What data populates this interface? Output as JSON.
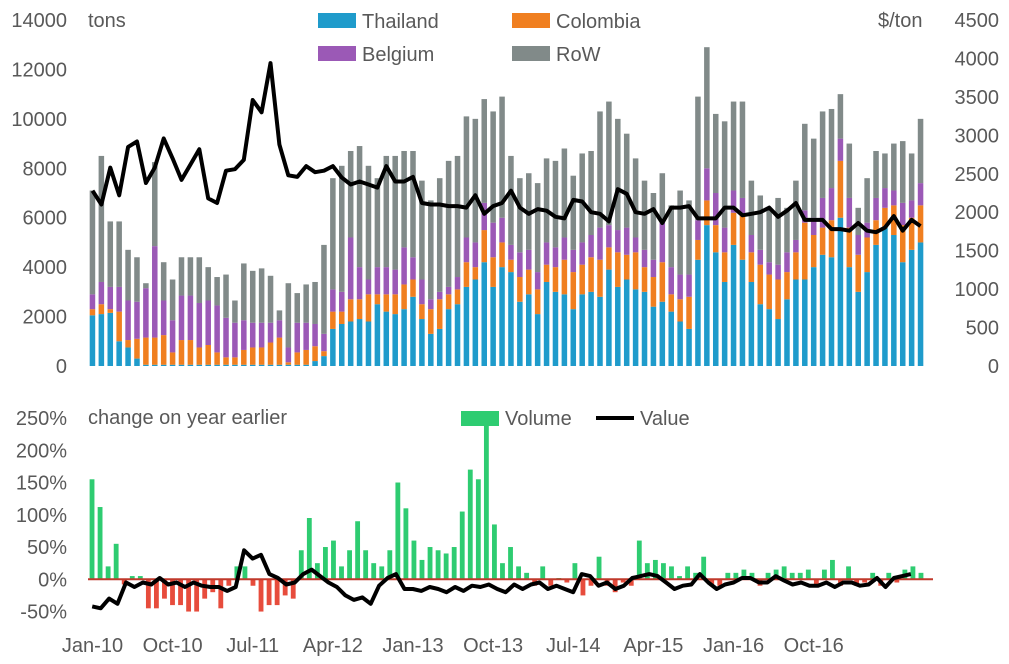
{
  "chart_data": [
    {
      "type": "bar",
      "stacked": true,
      "y_unit": "tons",
      "y2_unit": "$/ton",
      "ylim": [
        0,
        14000
      ],
      "y2lim": [
        0,
        4500
      ],
      "yticks": [
        "0",
        "2000",
        "4000",
        "6000",
        "8000",
        "10000",
        "12000",
        "14000"
      ],
      "y2ticks": [
        "0",
        "500",
        "1000",
        "1500",
        "2000",
        "2500",
        "3000",
        "3500",
        "4000",
        "4500"
      ],
      "grid": false,
      "legend": "top-center",
      "series": [
        {
          "name": "Thailand",
          "color": "#1f9bcb",
          "values": [
            2050,
            2100,
            2150,
            1000,
            750,
            300,
            50,
            50,
            50,
            50,
            50,
            50,
            50,
            50,
            50,
            50,
            50,
            50,
            50,
            50,
            50,
            50,
            50,
            50,
            50,
            200,
            400,
            1500,
            1700,
            1800,
            1900,
            1800,
            2500,
            2200,
            2100,
            2300,
            2800,
            1900,
            1300,
            1500,
            2300,
            2500,
            3200,
            3500,
            4200,
            3200,
            4000,
            3800,
            2600,
            2900,
            2100,
            3400,
            3000,
            2900,
            2300,
            2900,
            3000,
            2800,
            3900,
            3200,
            3500,
            3100,
            3000,
            2400,
            2600,
            2200,
            1800,
            1500,
            4300,
            5700,
            4600,
            3400,
            4900,
            4300,
            3400,
            2500,
            2300,
            1900,
            2700,
            3500,
            3500,
            4000,
            4500,
            4400,
            6000,
            4000,
            3000,
            3800,
            4900,
            5600,
            5300,
            4200,
            4700,
            5000
          ]
        },
        {
          "name": "Colombia",
          "color": "#f07f20",
          "values": [
            250,
            400,
            150,
            1200,
            300,
            800,
            1100,
            1100,
            1200,
            500,
            1000,
            1000,
            700,
            800,
            500,
            300,
            300,
            600,
            700,
            700,
            900,
            1100,
            100,
            500,
            600,
            600,
            200,
            700,
            500,
            900,
            800,
            1100,
            400,
            700,
            800,
            1000,
            700,
            600,
            1000,
            1200,
            600,
            600,
            1000,
            500,
            1300,
            1200,
            1000,
            500,
            1000,
            1000,
            1000,
            700,
            1000,
            1400,
            1500,
            1200,
            1400,
            1500,
            900,
            1400,
            1000,
            1500,
            1000,
            1200,
            1600,
            700,
            900,
            1300,
            800,
            1000,
            1100,
            1200,
            1300,
            1800,
            1200,
            1600,
            1400,
            1600,
            1100,
            1100,
            2300,
            1300,
            1100,
            1500,
            2300,
            1600,
            1500,
            1400,
            1000,
            800,
            1200,
            1500,
            1300,
            1500
          ]
        },
        {
          "name": "Belgium",
          "color": "#9b59b6",
          "values": [
            600,
            900,
            900,
            1000,
            1600,
            1500,
            2000,
            3700,
            1400,
            1300,
            1800,
            1800,
            1800,
            1800,
            1900,
            1600,
            1400,
            1200,
            1000,
            1000,
            800,
            700,
            600,
            1200,
            1100,
            900,
            700,
            900,
            800,
            2500,
            1300,
            600,
            1100,
            1100,
            1000,
            1500,
            900,
            1000,
            400,
            300,
            300,
            500,
            1000,
            1000,
            1100,
            1400,
            1000,
            600,
            1000,
            800,
            700,
            900,
            800,
            900,
            900,
            900,
            900,
            1300,
            900,
            900,
            1100,
            600,
            700,
            700,
            1600,
            1100,
            1000,
            900,
            800,
            1300,
            1300,
            1000,
            900,
            700,
            700,
            600,
            500,
            600,
            800,
            500,
            500,
            700,
            1200,
            1300,
            900,
            1200,
            800,
            600,
            900,
            800,
            600,
            900,
            700,
            900
          ]
        },
        {
          "name": "RoW",
          "color": "#818a89",
          "values": [
            4200,
            5100,
            2650,
            2650,
            2050,
            1800,
            200,
            3400,
            1550,
            1650,
            1550,
            1550,
            1850,
            1350,
            1150,
            1750,
            900,
            2300,
            2100,
            2200,
            1900,
            400,
            2600,
            1200,
            1550,
            1700,
            3600,
            4500,
            5100,
            3500,
            4900,
            4600,
            3600,
            4500,
            4600,
            3900,
            4300,
            4000,
            4000,
            4600,
            5100,
            4900,
            4900,
            5000,
            4200,
            4500,
            4900,
            3600,
            3000,
            3100,
            3600,
            3400,
            3500,
            3600,
            3000,
            3600,
            3400,
            4700,
            5000,
            4500,
            3800,
            3200,
            2800,
            2700,
            2000,
            2500,
            3400,
            3000,
            5000,
            4900,
            3200,
            4300,
            3600,
            3900,
            2200,
            2200,
            2200,
            2700,
            1800,
            2400,
            3500,
            3200,
            3500,
            3200,
            1800,
            2200,
            1100,
            1800,
            1900,
            1400,
            1900,
            2500,
            1900,
            2600
          ]
        },
        {
          "name": "Value",
          "color": "#000000",
          "axis": "right",
          "type": "line",
          "values": [
            2280,
            2100,
            2580,
            2220,
            2850,
            2920,
            2380,
            2580,
            2960,
            2700,
            2420,
            2620,
            2820,
            2180,
            2120,
            2540,
            2560,
            2680,
            3460,
            3300,
            3940,
            2880,
            2480,
            2460,
            2600,
            2520,
            2540,
            2600,
            2450,
            2360,
            2400,
            2360,
            2320,
            2600,
            2400,
            2400,
            2460,
            2120,
            2100,
            2100,
            2080,
            2080,
            2060,
            2220,
            1980,
            2080,
            2120,
            2280,
            2060,
            1980,
            2040,
            2020,
            1940,
            1920,
            2160,
            2140,
            2000,
            1980,
            1880,
            2300,
            2240,
            2000,
            1980,
            2040,
            1860,
            2060,
            2060,
            2080,
            1920,
            1920,
            1920,
            2060,
            2060,
            1960,
            1980,
            2000,
            2060,
            1940,
            2020,
            2120,
            1900,
            1900,
            1900,
            1780,
            1780,
            1760,
            1860,
            1760,
            1740,
            1800,
            1950,
            1760,
            1900,
            1820
          ]
        }
      ]
    },
    {
      "type": "bar",
      "title": "change on year earlier",
      "ylim": [
        -0.6,
        2.5
      ],
      "yticks": [
        "-50%",
        "0%",
        "50%",
        "100%",
        "150%",
        "200%",
        "250%"
      ],
      "xticks": [
        "Jan-10",
        "Oct-10",
        "Jul-11",
        "Apr-12",
        "Jan-13",
        "Oct-13",
        "Jul-14",
        "Apr-15",
        "Jan-16",
        "Oct-16"
      ],
      "grid": false,
      "legend": "top-center",
      "positive_color": "#2ecc71",
      "negative_color": "#e74c3c",
      "zero_line_color": "#c0392b",
      "series": [
        {
          "name": "Volume",
          "color": "#2ecc71",
          "values": [
            1.55,
            1.12,
            0.2,
            0.55,
            -0.08,
            0.05,
            0.05,
            -0.45,
            -0.45,
            -0.3,
            -0.4,
            -0.4,
            -0.5,
            -0.5,
            -0.3,
            -0.2,
            -0.45,
            -0.1,
            0.2,
            0.2,
            -0.1,
            -0.5,
            -0.4,
            -0.4,
            -0.25,
            -0.3,
            0.45,
            0.95,
            0.25,
            0.5,
            0.6,
            0.2,
            0.45,
            0.9,
            0.45,
            0.25,
            0.2,
            0.45,
            1.5,
            1.1,
            0.6,
            0.3,
            0.5,
            0.45,
            0.4,
            0.5,
            1.05,
            1.7,
            1.55,
            2.5,
            0.85,
            0.25,
            0.5,
            0.2,
            0.1,
            -0.1,
            0.2,
            -0.1,
            0.02,
            -0.05,
            0.25,
            -0.25,
            -0.1,
            0.35,
            -0.1,
            -0.2,
            -0.05,
            -0.1,
            0.6,
            0.25,
            0.3,
            0.25,
            0.2,
            0.05,
            0.2,
            0.1,
            0.35,
            -0.1,
            -0.1,
            0.1,
            0.1,
            0.15,
            0.1,
            -0.1,
            0.1,
            0.15,
            0.2,
            0.1,
            0.1,
            0.15,
            -0.1,
            0.15,
            0.3,
            -0.1,
            0.2,
            -0.1,
            -0.05,
            0.1,
            -0.1,
            0.1,
            -0.05,
            0.15,
            0.2,
            0.1
          ]
        },
        {
          "name": "Value",
          "color": "#000000",
          "type": "line",
          "values": [
            -0.42,
            -0.45,
            -0.3,
            -0.38,
            -0.05,
            -0.12,
            -0.05,
            -0.08,
            0.02,
            -0.08,
            -0.05,
            -0.12,
            -0.05,
            -0.1,
            -0.12,
            -0.12,
            -0.18,
            -0.12,
            0.45,
            0.32,
            0.38,
            0.08,
            0.02,
            -0.08,
            -0.05,
            0.08,
            0.15,
            0.05,
            -0.05,
            -0.12,
            -0.25,
            -0.32,
            -0.28,
            -0.38,
            -0.1,
            0.02,
            0.08,
            -0.15,
            -0.15,
            -0.18,
            -0.12,
            -0.15,
            -0.2,
            -0.12,
            -0.18,
            -0.1,
            -0.12,
            -0.08,
            -0.15,
            -0.2,
            -0.08,
            -0.15,
            -0.08,
            -0.05,
            -0.15,
            -0.1,
            -0.15,
            -0.2,
            0.08,
            0.05,
            -0.1,
            -0.05,
            -0.15,
            -0.1,
            0.02,
            0.05,
            0.08,
            0.05,
            -0.05,
            -0.15,
            -0.1,
            -0.08,
            0.08,
            -0.05,
            -0.15,
            -0.08,
            -0.05,
            0.02,
            0.02,
            -0.05,
            -0.05,
            0.05,
            -0.02,
            -0.08,
            -0.05,
            -0.1,
            -0.1,
            -0.05,
            -0.12,
            -0.05,
            -0.05,
            -0.1,
            -0.08,
            0.02,
            -0.12,
            0.02,
            0.05,
            0.08
          ]
        }
      ]
    }
  ]
}
